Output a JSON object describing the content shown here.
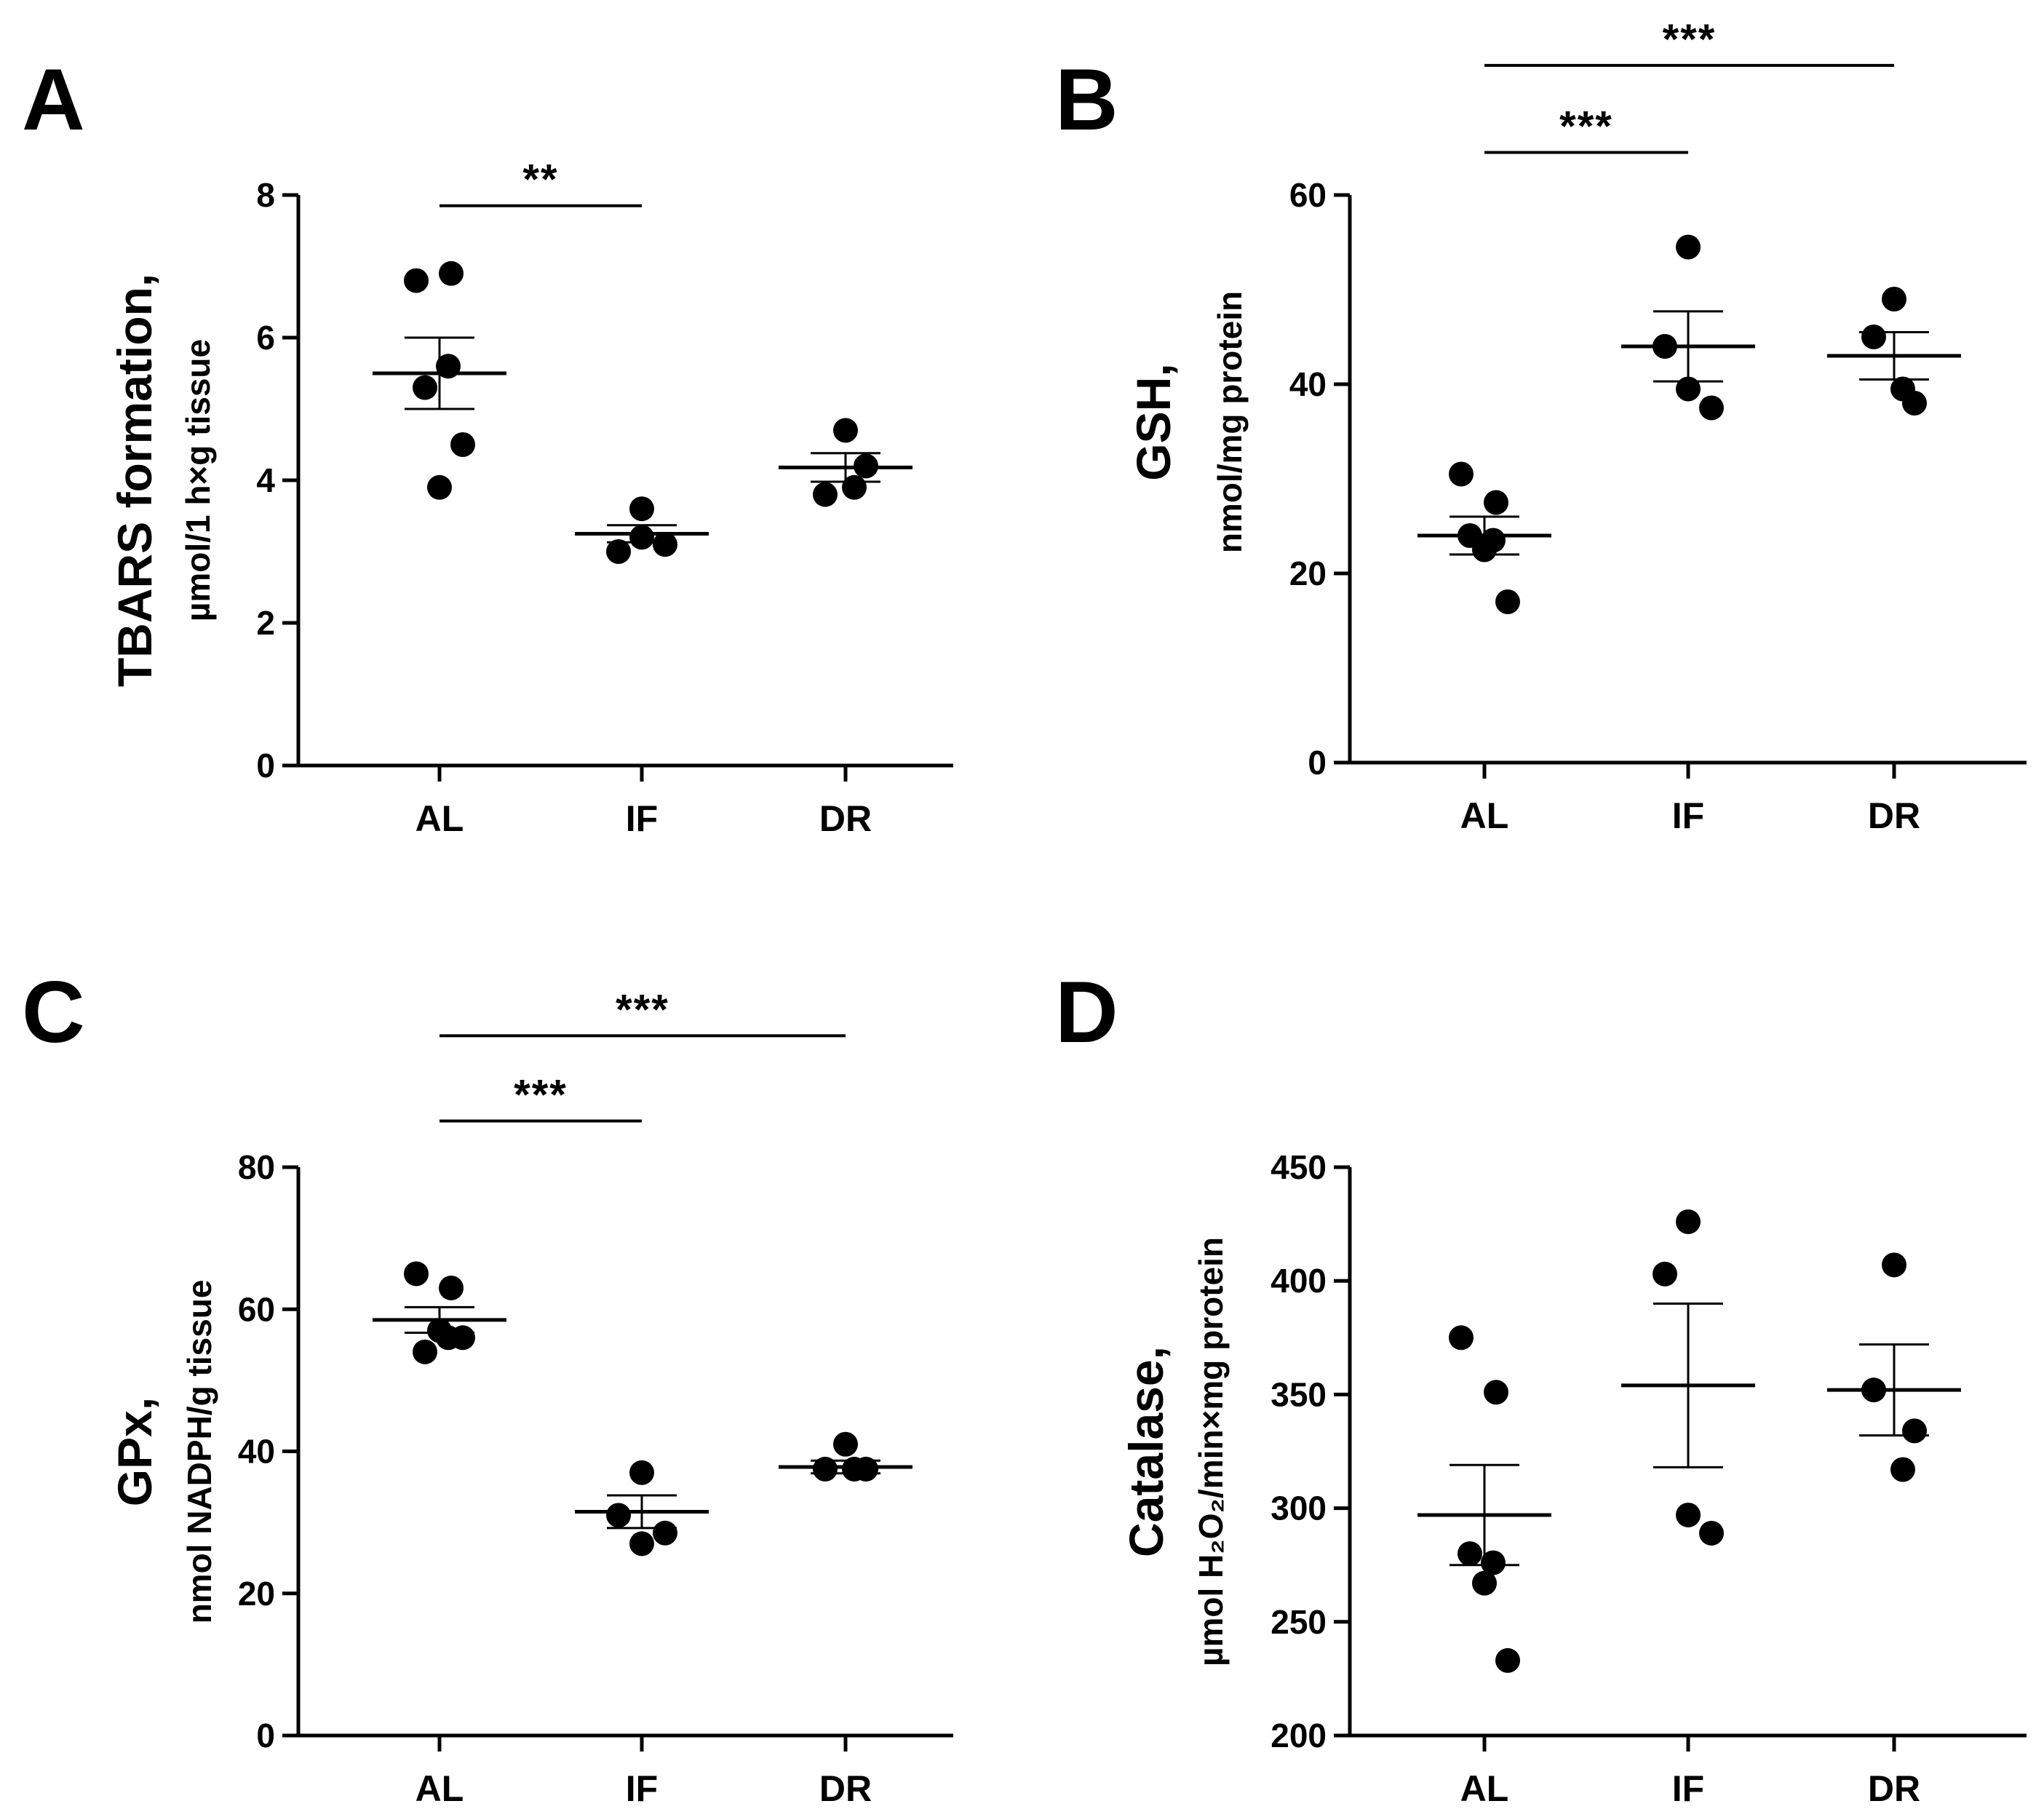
{
  "chart_data": [
    {
      "type": "scatter",
      "panel": "A",
      "ylabel_main": "TBARS formation,",
      "ylabel_unit": "µmol/1 h×g tissue",
      "ylim": [
        0,
        8
      ],
      "yticks": [
        0,
        2,
        4,
        6,
        8
      ],
      "categories": [
        "AL",
        "IF",
        "DR"
      ],
      "groups": [
        {
          "name": "AL",
          "points": [
            6.8,
            6.9,
            5.3,
            5.6,
            3.9,
            4.5
          ],
          "mean": 5.5,
          "sem": 0.5
        },
        {
          "name": "IF",
          "points": [
            3.6,
            3.0,
            3.2,
            3.1
          ],
          "mean": 3.25,
          "sem": 0.12
        },
        {
          "name": "DR",
          "points": [
            4.7,
            3.8,
            4.2,
            3.9
          ],
          "mean": 4.18,
          "sem": 0.2
        }
      ],
      "significance": [
        {
          "from": "AL",
          "to": "IF",
          "label": "**",
          "level": 7.85
        }
      ]
    },
    {
      "type": "scatter",
      "panel": "B",
      "ylabel_main": "GSH,",
      "ylabel_unit": "nmol/mg protein",
      "ylim": [
        0,
        60
      ],
      "yticks": [
        0,
        20,
        40,
        60
      ],
      "categories": [
        "AL",
        "IF",
        "DR"
      ],
      "groups": [
        {
          "name": "AL",
          "points": [
            30.5,
            27.5,
            24,
            23.5,
            22.5,
            17
          ],
          "mean": 24,
          "sem": 2
        },
        {
          "name": "IF",
          "points": [
            54.5,
            44,
            39.5,
            37.5
          ],
          "mean": 44,
          "sem": 3.7
        },
        {
          "name": "DR",
          "points": [
            49,
            45,
            38,
            39.5
          ],
          "mean": 43,
          "sem": 2.5
        }
      ],
      "significance": [
        {
          "from": "AL",
          "to": "IF",
          "label": "***",
          "level": 64.5
        },
        {
          "from": "AL",
          "to": "DR",
          "label": "***",
          "level": 73.7
        }
      ]
    },
    {
      "type": "scatter",
      "panel": "C",
      "ylabel_main": "GPx,",
      "ylabel_unit": "nmol NADPH/g tissue",
      "ylim": [
        0,
        80
      ],
      "yticks": [
        0,
        20,
        40,
        60,
        80
      ],
      "categories": [
        "AL",
        "IF",
        "DR"
      ],
      "groups": [
        {
          "name": "AL",
          "points": [
            65,
            63,
            54,
            56,
            57,
            56
          ],
          "mean": 58.5,
          "sem": 1.8
        },
        {
          "name": "IF",
          "points": [
            37,
            31,
            27,
            28.5
          ],
          "mean": 31.5,
          "sem": 2.3
        },
        {
          "name": "DR",
          "points": [
            41,
            37.5,
            37.5,
            37.5
          ],
          "mean": 37.8,
          "sem": 0.9
        }
      ],
      "significance": [
        {
          "from": "AL",
          "to": "IF",
          "label": "***",
          "level": 86.5
        },
        {
          "from": "AL",
          "to": "DR",
          "label": "***",
          "level": 98.5
        }
      ]
    },
    {
      "type": "scatter",
      "panel": "D",
      "ylabel_main": "Catalase,",
      "ylabel_unit": "µmol H₂O₂/min×mg protein",
      "ylim": [
        200,
        450
      ],
      "yticks": [
        200,
        250,
        300,
        350,
        400,
        450
      ],
      "categories": [
        "AL",
        "IF",
        "DR"
      ],
      "groups": [
        {
          "name": "AL",
          "points": [
            375,
            351,
            280,
            276,
            267,
            233
          ],
          "mean": 297,
          "sem": 22
        },
        {
          "name": "IF",
          "points": [
            426,
            403,
            297,
            289
          ],
          "mean": 354,
          "sem": 36
        },
        {
          "name": "DR",
          "points": [
            407,
            352,
            334,
            317
          ],
          "mean": 352,
          "sem": 20
        }
      ],
      "significance": []
    }
  ]
}
